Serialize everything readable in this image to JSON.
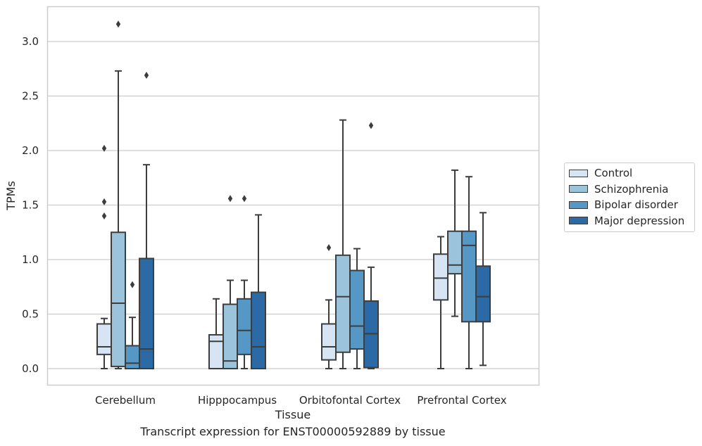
{
  "chart_data": {
    "type": "box",
    "xlabel": "Tissue",
    "ylabel": "TPMs",
    "ylim": [
      -0.15,
      3.32
    ],
    "y_ticks": [
      0.0,
      0.5,
      1.0,
      1.5,
      2.0,
      2.5,
      3.0
    ],
    "y_tick_labels": [
      "0.0",
      "0.5",
      "1.0",
      "1.5",
      "2.0",
      "2.5",
      "3.0"
    ],
    "categories": [
      "Cerebellum",
      "Hipppocampus",
      "Orbitofontal Cortex",
      "Prefrontal Cortex"
    ],
    "grid": "horizontal",
    "legend_position": "right",
    "series": [
      {
        "name": "Control",
        "color": "#d6e4f3",
        "boxes": [
          {
            "whislo": 0.0,
            "q1": 0.13,
            "med": 0.2,
            "q3": 0.41,
            "whishi": 0.46,
            "fliers": [
              1.4,
              1.53,
              2.02
            ]
          },
          {
            "whislo": 0.0,
            "q1": 0.0,
            "med": 0.25,
            "q3": 0.31,
            "whishi": 0.64,
            "fliers": []
          },
          {
            "whislo": 0.0,
            "q1": 0.08,
            "med": 0.2,
            "q3": 0.41,
            "whishi": 0.63,
            "fliers": [
              1.11
            ]
          },
          {
            "whislo": 0.0,
            "q1": 0.63,
            "med": 0.83,
            "q3": 1.05,
            "whishi": 1.21,
            "fliers": []
          }
        ]
      },
      {
        "name": "Schizophrenia",
        "color": "#9bc3dc",
        "boxes": [
          {
            "whislo": 0.0,
            "q1": 0.02,
            "med": 0.6,
            "q3": 1.25,
            "whishi": 2.73,
            "fliers": [
              3.16
            ]
          },
          {
            "whislo": 0.0,
            "q1": 0.0,
            "med": 0.07,
            "q3": 0.59,
            "whishi": 0.81,
            "fliers": [
              1.56
            ]
          },
          {
            "whislo": 0.0,
            "q1": 0.15,
            "med": 0.66,
            "q3": 1.04,
            "whishi": 2.28,
            "fliers": []
          },
          {
            "whislo": 0.48,
            "q1": 0.87,
            "med": 0.95,
            "q3": 1.26,
            "whishi": 1.82,
            "fliers": []
          }
        ]
      },
      {
        "name": "Bipolar disorder",
        "color": "#5597c5",
        "boxes": [
          {
            "whislo": 0.0,
            "q1": 0.0,
            "med": 0.05,
            "q3": 0.21,
            "whishi": 0.47,
            "fliers": [
              0.77
            ]
          },
          {
            "whislo": 0.0,
            "q1": 0.13,
            "med": 0.35,
            "q3": 0.64,
            "whishi": 0.81,
            "fliers": [
              1.56
            ]
          },
          {
            "whislo": 0.0,
            "q1": 0.18,
            "med": 0.39,
            "q3": 0.9,
            "whishi": 1.1,
            "fliers": []
          },
          {
            "whislo": 0.0,
            "q1": 0.43,
            "med": 1.13,
            "q3": 1.26,
            "whishi": 1.76,
            "fliers": []
          }
        ]
      },
      {
        "name": "Major depression",
        "color": "#2c6aa6",
        "boxes": [
          {
            "whislo": 0.0,
            "q1": 0.0,
            "med": 0.18,
            "q3": 1.01,
            "whishi": 1.87,
            "fliers": [
              2.69
            ]
          },
          {
            "whislo": 0.0,
            "q1": 0.0,
            "med": 0.2,
            "q3": 0.7,
            "whishi": 1.41,
            "fliers": []
          },
          {
            "whislo": 0.0,
            "q1": 0.01,
            "med": 0.32,
            "q3": 0.62,
            "whishi": 0.93,
            "fliers": [
              2.23
            ]
          },
          {
            "whislo": 0.03,
            "q1": 0.43,
            "med": 0.66,
            "q3": 0.94,
            "whishi": 1.43,
            "fliers": []
          }
        ]
      }
    ]
  },
  "caption": "Transcript expression for ENST00000592889 by tissue"
}
